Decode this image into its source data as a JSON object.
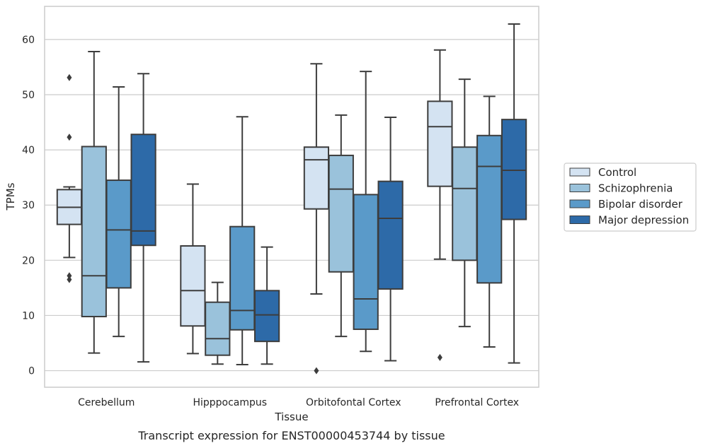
{
  "caption": "Transcript expression for ENST00000453744 by tissue",
  "chart_data": {
    "type": "box",
    "title": "",
    "xlabel": "Tissue",
    "ylabel": "TPMs",
    "ylim": [
      -3,
      66
    ],
    "yticks": [
      0,
      10,
      20,
      30,
      40,
      50,
      60
    ],
    "grid": "horizontal",
    "legend_position": "right",
    "categories": [
      "Cerebellum",
      "Hipppocampus",
      "Orbitofontal Cortex",
      "Prefrontal Cortex"
    ],
    "series": [
      {
        "name": "Control",
        "color": "#d4e3f2",
        "boxes": [
          {
            "whislo": 20.5,
            "q1": 26.5,
            "med": 29.6,
            "q3": 32.8,
            "whishi": 33.3,
            "fliers": [
              53.1,
              42.3,
              17.2,
              16.5
            ]
          },
          {
            "whislo": 3.1,
            "q1": 8.1,
            "med": 14.5,
            "q3": 22.6,
            "whishi": 33.8,
            "fliers": []
          },
          {
            "whislo": 13.9,
            "q1": 29.3,
            "med": 38.2,
            "q3": 40.5,
            "whishi": 55.6,
            "fliers": [
              0.0
            ]
          },
          {
            "whislo": 20.2,
            "q1": 33.4,
            "med": 44.2,
            "q3": 48.8,
            "whishi": 58.1,
            "fliers": [
              2.4
            ]
          }
        ]
      },
      {
        "name": "Schizophrenia",
        "color": "#9ac2db",
        "boxes": [
          {
            "whislo": 3.2,
            "q1": 9.8,
            "med": 17.2,
            "q3": 40.6,
            "whishi": 57.8,
            "fliers": []
          },
          {
            "whislo": 1.2,
            "q1": 2.8,
            "med": 5.8,
            "q3": 12.4,
            "whishi": 16.0,
            "fliers": []
          },
          {
            "whislo": 6.2,
            "q1": 17.9,
            "med": 32.9,
            "q3": 39.0,
            "whishi": 46.3,
            "fliers": []
          },
          {
            "whislo": 8.0,
            "q1": 20.0,
            "med": 33.0,
            "q3": 40.5,
            "whishi": 52.8,
            "fliers": []
          }
        ]
      },
      {
        "name": "Bipolar disorder",
        "color": "#5a9ac9",
        "boxes": [
          {
            "whislo": 6.2,
            "q1": 15.0,
            "med": 25.5,
            "q3": 34.5,
            "whishi": 51.4,
            "fliers": []
          },
          {
            "whislo": 1.1,
            "q1": 7.4,
            "med": 10.9,
            "q3": 26.1,
            "whishi": 46.0,
            "fliers": []
          },
          {
            "whislo": 3.5,
            "q1": 7.5,
            "med": 13.0,
            "q3": 31.9,
            "whishi": 54.2,
            "fliers": []
          },
          {
            "whislo": 4.3,
            "q1": 15.9,
            "med": 37.0,
            "q3": 42.6,
            "whishi": 49.7,
            "fliers": []
          }
        ]
      },
      {
        "name": "Major depression",
        "color": "#2d6aa8",
        "boxes": [
          {
            "whislo": 1.6,
            "q1": 22.7,
            "med": 25.3,
            "q3": 42.8,
            "whishi": 53.8,
            "fliers": []
          },
          {
            "whislo": 1.2,
            "q1": 5.3,
            "med": 10.1,
            "q3": 14.5,
            "whishi": 22.4,
            "fliers": []
          },
          {
            "whislo": 1.8,
            "q1": 14.8,
            "med": 27.6,
            "q3": 34.3,
            "whishi": 45.9,
            "fliers": []
          },
          {
            "whislo": 1.4,
            "q1": 27.4,
            "med": 36.3,
            "q3": 45.5,
            "whishi": 62.8,
            "fliers": []
          }
        ]
      }
    ]
  }
}
